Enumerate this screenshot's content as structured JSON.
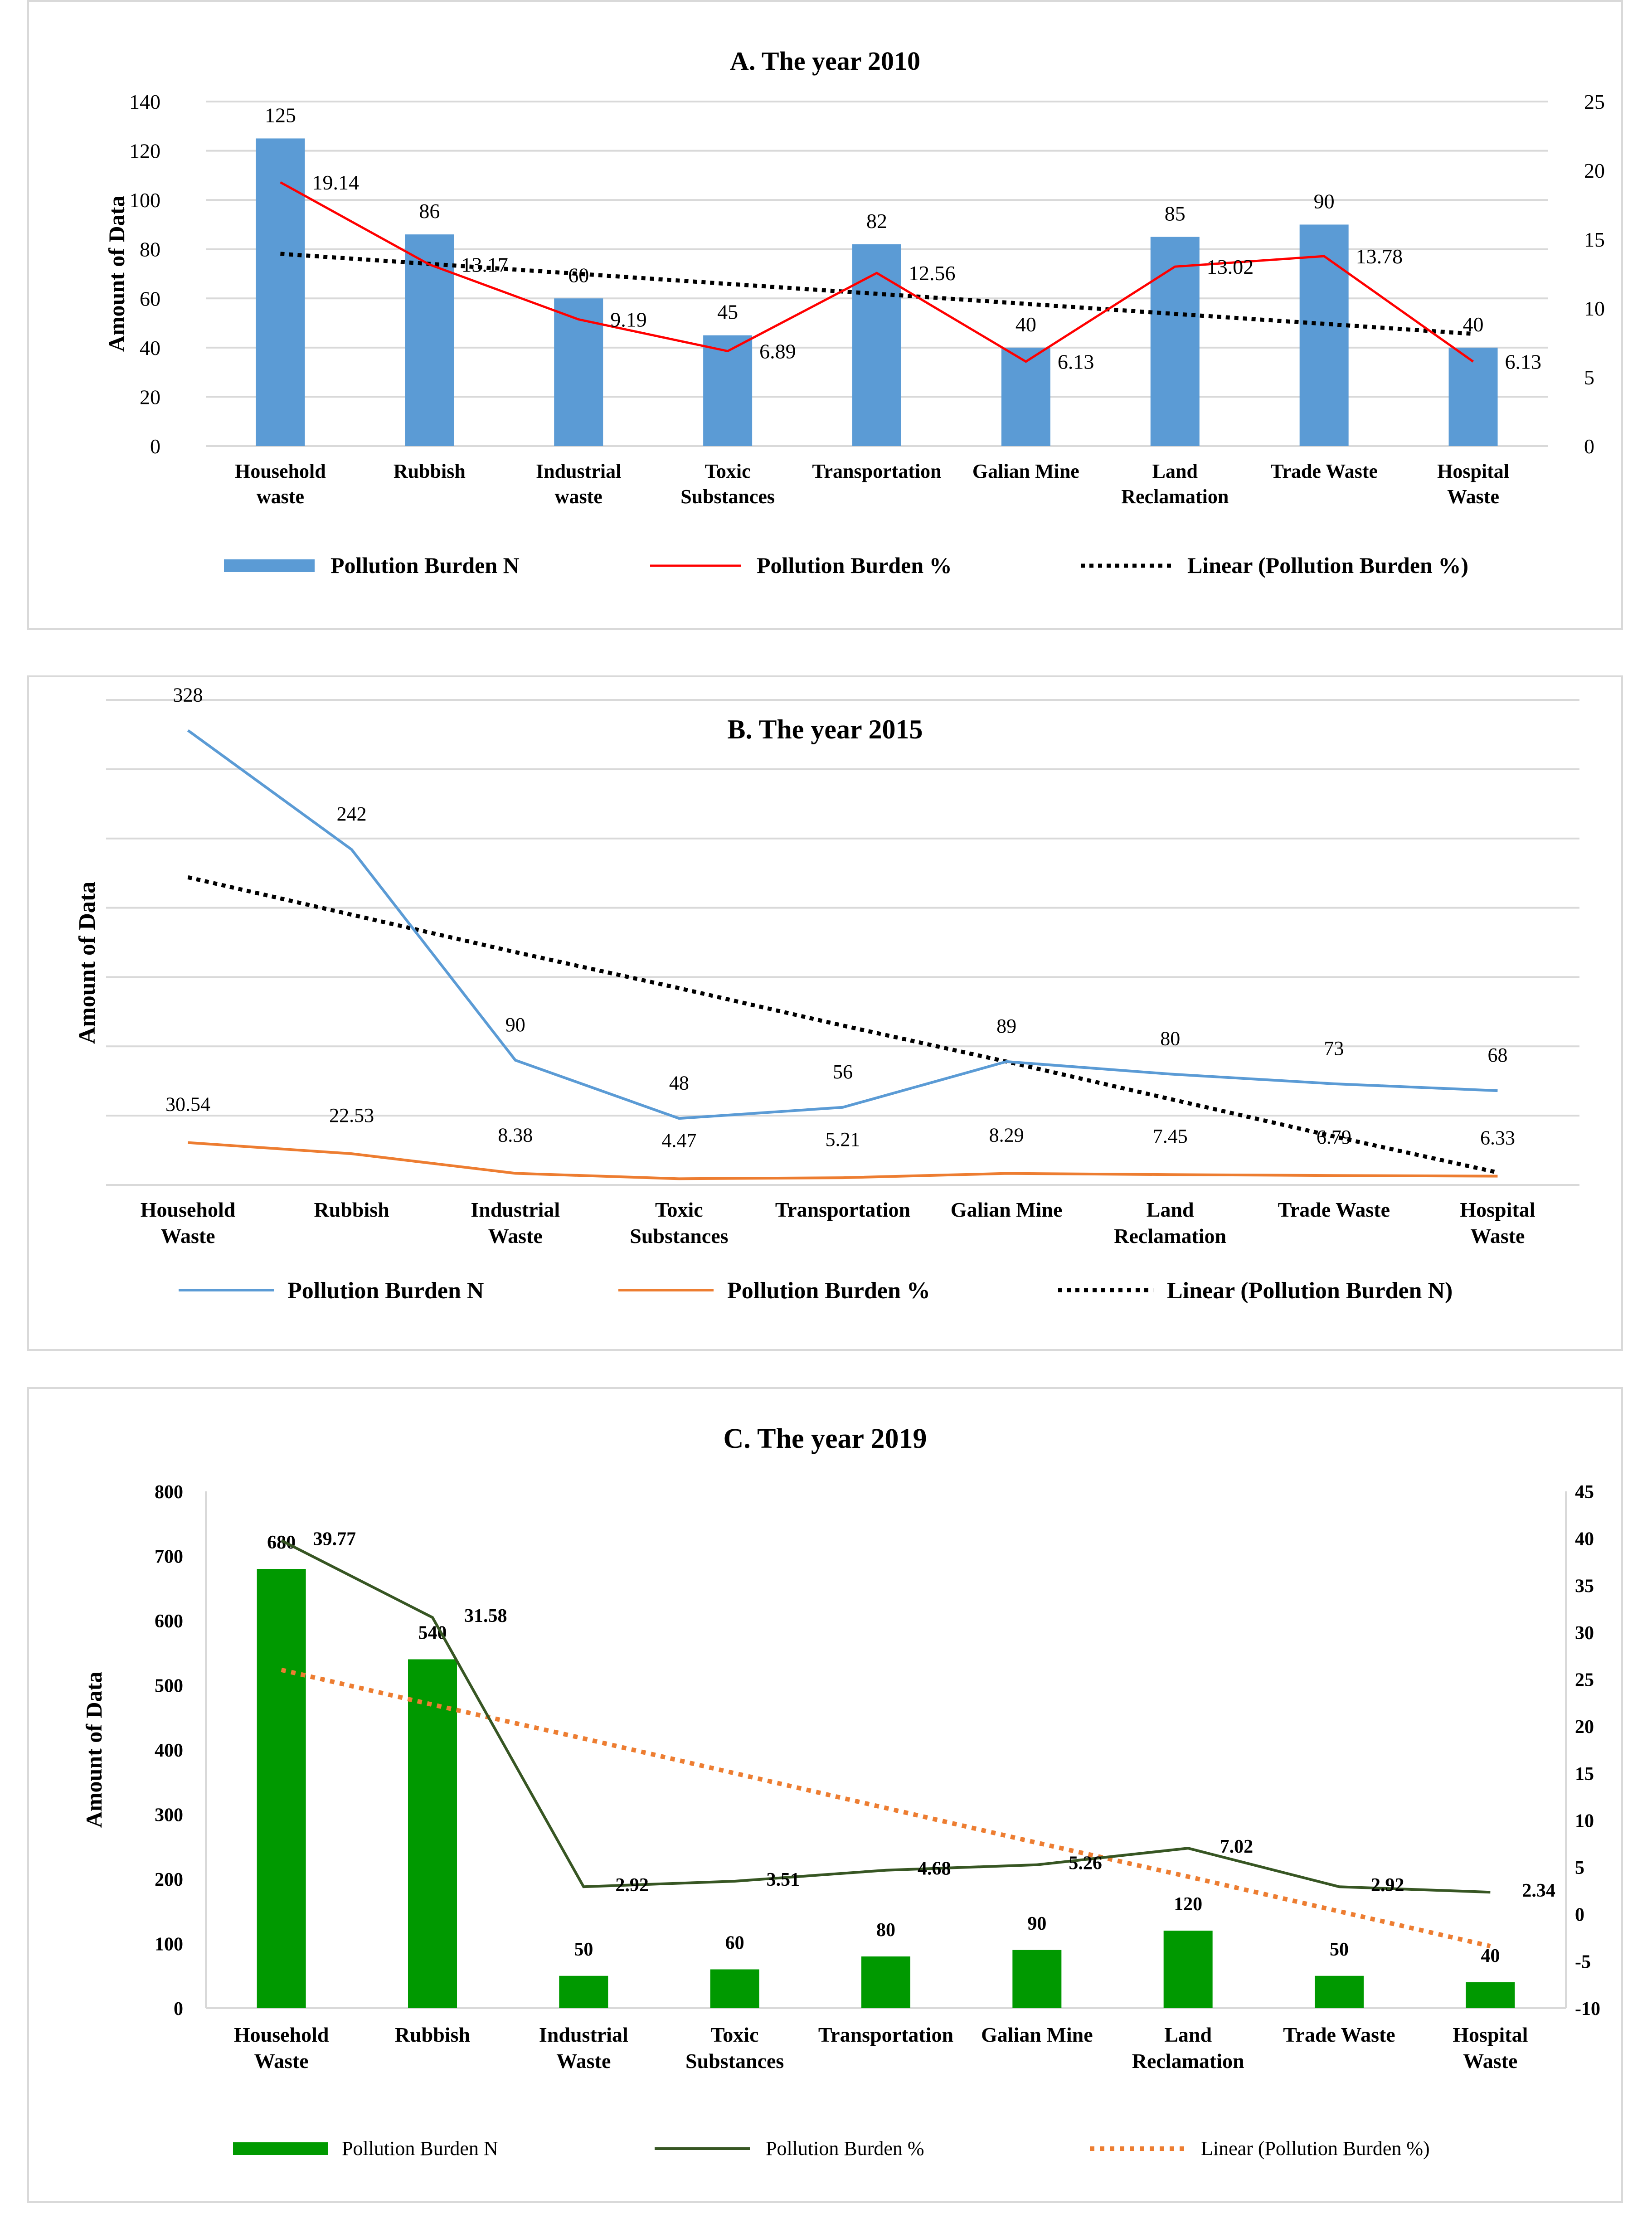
{
  "chart_data": [
    {
      "type": "bar",
      "title": "A. The year 2010",
      "ylabel": "Amount of Data",
      "y2label": "",
      "ylim": [
        0,
        140
      ],
      "yticks": [
        0,
        20,
        40,
        60,
        80,
        100,
        120,
        140
      ],
      "y2lim": [
        0,
        25
      ],
      "y2ticks": [
        0,
        5,
        10,
        15,
        20,
        25
      ],
      "categories": [
        "Household waste",
        "Rubbish",
        "Industrial waste",
        "Toxic Substances",
        "Transportation",
        "Galian Mine",
        "Land Reclamation",
        "Trade Waste",
        "Hospital Waste"
      ],
      "series": [
        {
          "name": "Pollution Burden N",
          "kind": "bar",
          "axis": "left",
          "color": "#5b9bd5",
          "values": [
            125,
            86,
            60,
            45,
            82,
            40,
            85,
            90,
            40
          ]
        },
        {
          "name": "Pollution Burden %",
          "kind": "line",
          "axis": "right",
          "color": "#ff0000",
          "values": [
            19.14,
            13.17,
            9.19,
            6.89,
            12.56,
            6.13,
            13.02,
            13.78,
            6.13
          ]
        },
        {
          "name": "Linear (Pollution Burden %)",
          "kind": "trend",
          "axis": "right",
          "color": "#000000",
          "values": [
            13.95,
            13.22,
            12.5,
            11.77,
            11.05,
            10.32,
            9.59,
            8.87,
            8.14
          ]
        }
      ],
      "grid": true,
      "legend": "bottom"
    },
    {
      "type": "line",
      "title": "B. The year 2015",
      "ylabel": "Amount of Data",
      "ylim": [
        0,
        350
      ],
      "gridlines": [
        0,
        50,
        100,
        150,
        200,
        250,
        300,
        350
      ],
      "categories": [
        "Household Waste",
        "Rubbish",
        "Industrial Waste",
        "Toxic Substances",
        "Transportation",
        "Galian Mine",
        "Land Reclamation",
        "Trade Waste",
        "Hospital Waste"
      ],
      "series": [
        {
          "name": "Pollution Burden N",
          "kind": "line",
          "color": "#5b9bd5",
          "values": [
            328,
            242,
            90,
            48,
            56,
            89,
            80,
            73,
            68
          ]
        },
        {
          "name": "Pollution Burden %",
          "kind": "line",
          "color": "#ed7d31",
          "values": [
            30.54,
            22.53,
            8.38,
            4.47,
            5.21,
            8.29,
            7.45,
            6.79,
            6.33
          ]
        },
        {
          "name": "Linear (Pollution Burden N)",
          "kind": "trend",
          "color": "#000000",
          "values": [
            222,
            195,
            168,
            142,
            115,
            89,
            62,
            35,
            9
          ]
        }
      ],
      "grid": true,
      "legend": "bottom"
    },
    {
      "type": "bar",
      "title": "C. The year 2019",
      "ylabel": "Amount of Data",
      "ylim": [
        0,
        800
      ],
      "yticks": [
        0,
        100,
        200,
        300,
        400,
        500,
        600,
        700,
        800
      ],
      "y2lim": [
        -10,
        45
      ],
      "y2ticks": [
        -10,
        -5,
        0,
        5,
        10,
        15,
        20,
        25,
        30,
        35,
        40,
        45
      ],
      "categories": [
        "Household Waste",
        "Rubbish",
        "Industrial Waste",
        "Toxic Substances",
        "Transportation",
        "Galian Mine",
        "Land Reclamation",
        "Trade Waste",
        "Hospital Waste"
      ],
      "series": [
        {
          "name": "Pollution Burden N",
          "kind": "bar",
          "axis": "left",
          "color": "#009900",
          "values": [
            680,
            540,
            50,
            60,
            80,
            90,
            120,
            50,
            40
          ]
        },
        {
          "name": "Pollution Burden %",
          "kind": "line",
          "axis": "right",
          "color": "#375623",
          "values": [
            39.77,
            31.58,
            2.92,
            3.51,
            4.68,
            5.26,
            7.02,
            2.92,
            2.34
          ]
        },
        {
          "name": "Linear (Pollution Burden %)",
          "kind": "trend",
          "axis": "right",
          "color": "#ed7d31",
          "values": [
            26.0,
            22.3,
            18.7,
            15.0,
            11.3,
            7.6,
            4.0,
            0.3,
            -3.4
          ]
        }
      ],
      "grid": false,
      "legend": "bottom"
    }
  ]
}
